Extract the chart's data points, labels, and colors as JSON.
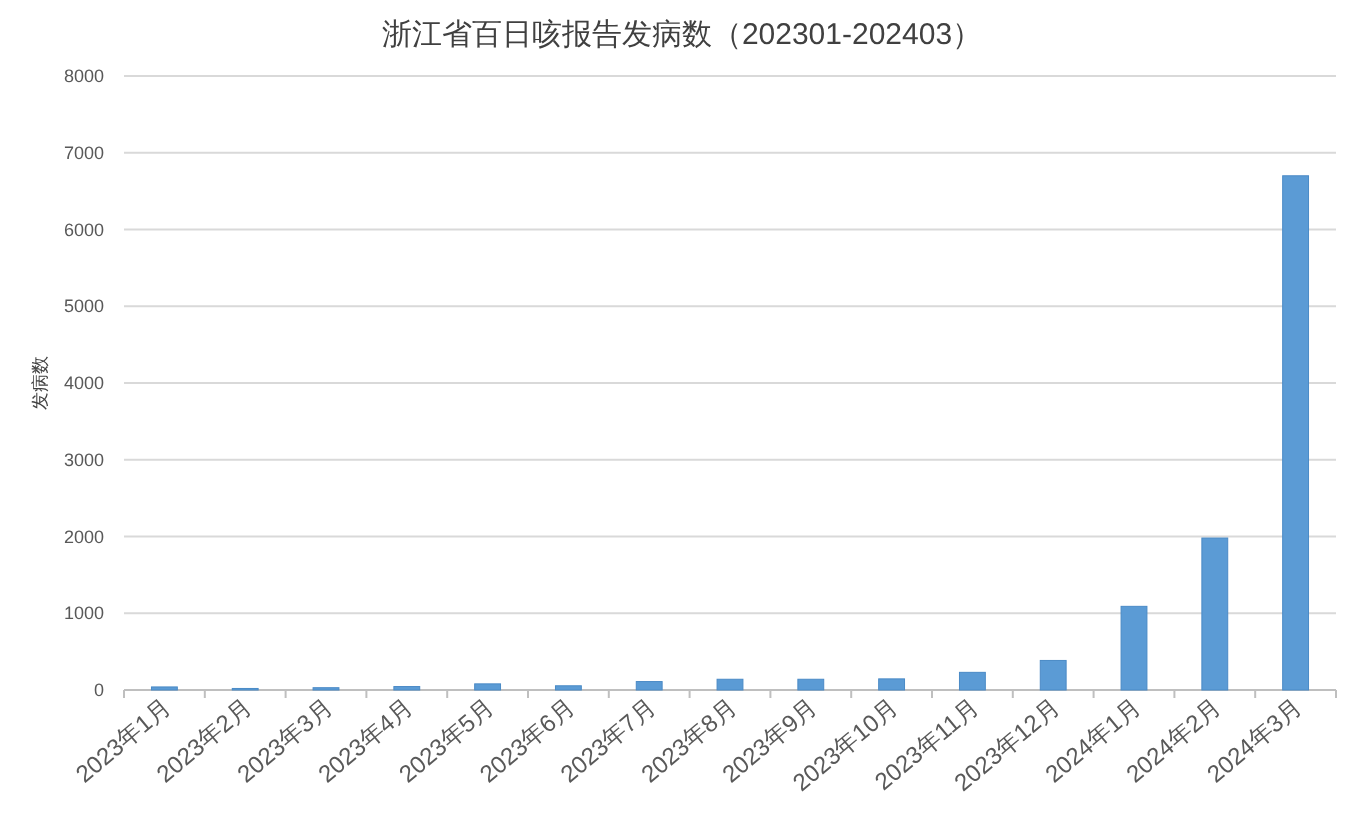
{
  "chart_data": {
    "type": "bar",
    "title": "浙江省百日咳报告发病数（202301-202403）",
    "ylabel": "发病数",
    "categories": [
      "2023年1月",
      "2023年2月",
      "2023年3月",
      "2023年4月",
      "2023年5月",
      "2023年6月",
      "2023年7月",
      "2023年8月",
      "2023年9月",
      "2023年10月",
      "2023年11月",
      "2023年12月",
      "2024年1月",
      "2024年2月",
      "2024年3月"
    ],
    "values": [
      40,
      20,
      30,
      45,
      80,
      55,
      110,
      140,
      140,
      145,
      230,
      385,
      1090,
      1980,
      6700
    ],
    "color": "#5b9bd5",
    "ylim": [
      0,
      8000
    ],
    "yticks": [
      0,
      1000,
      2000,
      3000,
      4000,
      5000,
      6000,
      7000,
      8000
    ],
    "grid": "y"
  }
}
